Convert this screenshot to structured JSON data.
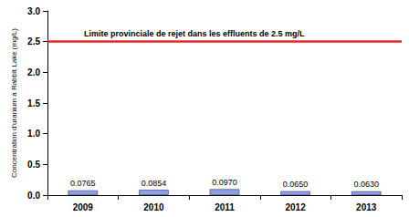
{
  "chart_data": {
    "type": "bar",
    "y_label": "Concentration d'uranium à Rabbit Lake (mg/L)",
    "categories": [
      "2009",
      "2010",
      "2011",
      "2012",
      "2013"
    ],
    "values": [
      0.0765,
      0.0854,
      0.097,
      0.065,
      0.063
    ],
    "value_labels": [
      "0.0765",
      "0.0854",
      "0.0970",
      "0.0650",
      "0.0630"
    ],
    "data_labels": true,
    "color": "#8f9fe6",
    "ylim": [
      0,
      3
    ],
    "yticks": [
      {
        "value": 0,
        "label": "0.0"
      },
      {
        "value": 0.5,
        "label": "0.5"
      },
      {
        "value": 1,
        "label": "1.0"
      },
      {
        "value": 1.5,
        "label": "1.5"
      },
      {
        "value": 2,
        "label": "2.0"
      },
      {
        "value": 2.5,
        "label": "2.5"
      },
      {
        "value": 3,
        "label": "3.0"
      }
    ],
    "grid": false,
    "reference_line": {
      "value": 2.5,
      "label": "Limite provinciale de rejet dans les effluents de 2.5 mg/L"
    }
  }
}
